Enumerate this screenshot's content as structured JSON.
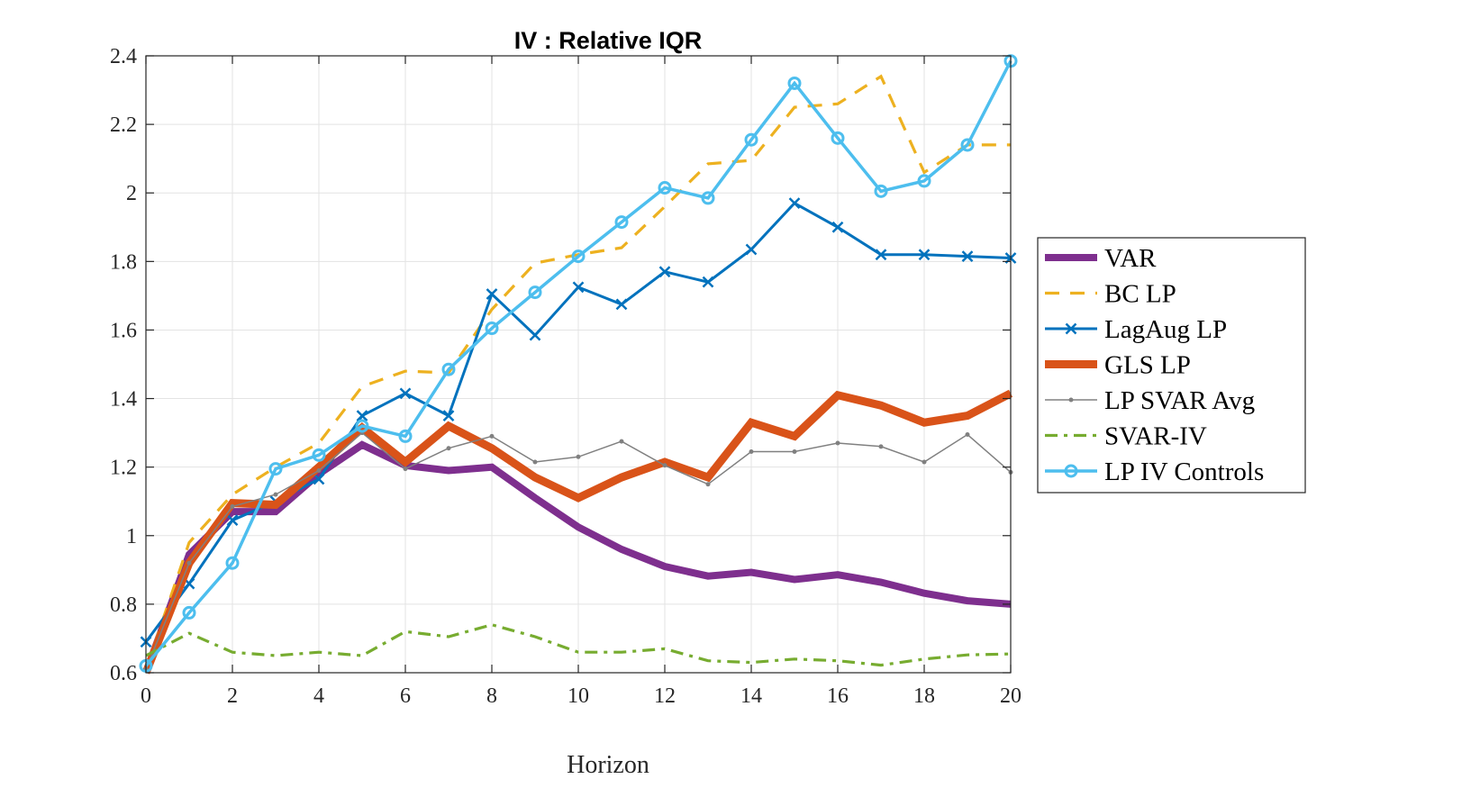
{
  "chart_data": {
    "type": "line",
    "title": "IV : Relative IQR",
    "xlabel": "Horizon",
    "ylabel": "",
    "xlim": [
      0,
      20
    ],
    "ylim": [
      0.6,
      2.4
    ],
    "xticks": [
      "0",
      "2",
      "4",
      "6",
      "8",
      "10",
      "12",
      "14",
      "16",
      "18",
      "20"
    ],
    "yticks": [
      "0.6",
      "0.8",
      "1",
      "1.2",
      "1.4",
      "1.6",
      "1.8",
      "2",
      "2.2",
      "2.4"
    ],
    "grid": true,
    "legend_position": "right",
    "x": [
      0,
      1,
      2,
      3,
      4,
      5,
      6,
      7,
      8,
      9,
      10,
      11,
      12,
      13,
      14,
      15,
      16,
      17,
      18,
      19,
      20
    ],
    "series": [
      {
        "name": "VAR",
        "color": "#7E2F8E",
        "style": "solid-thick",
        "values": [
          0.6,
          0.945,
          1.07,
          1.07,
          1.18,
          1.265,
          1.205,
          1.19,
          1.2,
          1.11,
          1.025,
          0.96,
          0.91,
          0.882,
          0.893,
          0.872,
          0.886,
          0.864,
          0.832,
          0.81,
          0.8
        ]
      },
      {
        "name": "BC LP",
        "color": "#EDB120",
        "style": "dashed",
        "values": [
          0.61,
          0.98,
          1.12,
          1.2,
          1.27,
          1.435,
          1.48,
          1.475,
          1.66,
          1.795,
          1.82,
          1.84,
          1.96,
          2.085,
          2.095,
          2.25,
          2.26,
          2.34,
          2.06,
          2.14,
          2.14
        ]
      },
      {
        "name": "LagAug LP",
        "color": "#0072BD",
        "style": "solid-x",
        "values": [
          0.69,
          0.86,
          1.045,
          1.1,
          1.165,
          1.35,
          1.415,
          1.35,
          1.705,
          1.585,
          1.725,
          1.675,
          1.77,
          1.74,
          1.835,
          1.97,
          1.9,
          1.82,
          1.82,
          1.815,
          1.81
        ]
      },
      {
        "name": "GLS LP",
        "color": "#D95319",
        "style": "solid-thick",
        "values": [
          0.6,
          0.92,
          1.095,
          1.09,
          1.2,
          1.315,
          1.215,
          1.32,
          1.255,
          1.17,
          1.11,
          1.17,
          1.215,
          1.17,
          1.33,
          1.29,
          1.41,
          1.38,
          1.33,
          1.35,
          1.415
        ]
      },
      {
        "name": "LP SVAR Avg",
        "color": "#808080",
        "style": "solid-thin-dot",
        "values": [
          0.61,
          0.92,
          1.085,
          1.12,
          1.19,
          1.3,
          1.195,
          1.255,
          1.29,
          1.215,
          1.23,
          1.275,
          1.205,
          1.15,
          1.245,
          1.245,
          1.27,
          1.26,
          1.215,
          1.295,
          1.185
        ]
      },
      {
        "name": "SVAR-IV",
        "color": "#77AC30",
        "style": "dashdot",
        "values": [
          0.65,
          0.715,
          0.66,
          0.65,
          0.66,
          0.65,
          0.72,
          0.705,
          0.74,
          0.705,
          0.66,
          0.66,
          0.67,
          0.635,
          0.63,
          0.64,
          0.635,
          0.622,
          0.64,
          0.652,
          0.655
        ]
      },
      {
        "name": "LP IV Controls",
        "color": "#4DBEEE",
        "style": "solid-o",
        "values": [
          0.62,
          0.775,
          0.92,
          1.195,
          1.235,
          1.32,
          1.29,
          1.485,
          1.605,
          1.71,
          1.815,
          1.915,
          2.015,
          1.985,
          2.155,
          2.32,
          2.16,
          2.005,
          2.035,
          2.14,
          2.385
        ]
      }
    ]
  }
}
